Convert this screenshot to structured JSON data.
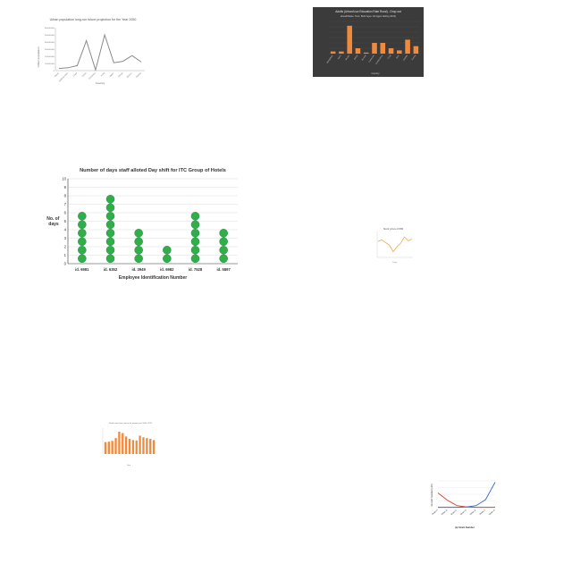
{
  "colors": {
    "dot_green": "#2fae4a",
    "dot_green_stroke": "#1d7d33",
    "orange": "#f28a3c",
    "dark_bg": "#3b3b3b",
    "line_gray": "#8a8a8a",
    "line_orange": "#f0a030",
    "line_red": "#d9413a",
    "line_blue": "#3b6ac9",
    "grid": "#dddddd"
  },
  "chart_data": [
    {
      "id": "urban",
      "type": "line",
      "title": "Urban population long-run future projection for the Year 2050",
      "xlabel": "Country",
      "ylabel": "Urban population",
      "categories": [
        "Brazil",
        "Burkina Faso",
        "Chad",
        "China",
        "Dominica",
        "India",
        "Japan",
        "Kenya",
        "Mexico",
        "Russia"
      ],
      "values": [
        30000000,
        40000000,
        70000000,
        420000000,
        10000000,
        500000000,
        110000000,
        130000000,
        210000000,
        120000000
      ],
      "ylim": [
        0,
        600000000
      ],
      "yticks": [
        "0",
        "100000000",
        "200000000",
        "300000000",
        "400000000",
        "500000000",
        "600000000"
      ],
      "grid": false
    },
    {
      "id": "dark",
      "type": "bar",
      "title": "Adults (Urban/Low Education Rate Rural) - Drop out",
      "subtitle": "ahead/Raise: Tens: Both  Ages: All (ages darling 2019)",
      "xlabel": "Country",
      "ylabel": "",
      "categories": [
        "Bangladesh",
        "Benin",
        "Bhutan",
        "Bolivia",
        "Burundi",
        "Cameroon",
        "Central Africa",
        "Chad",
        "DRC",
        "Gambia",
        "Guinea"
      ],
      "values": [
        2,
        2,
        26,
        5,
        1,
        10,
        10,
        5,
        3,
        13,
        7
      ],
      "ylim": [
        0,
        30
      ],
      "grid": true
    },
    {
      "id": "staff",
      "type": "scatter",
      "title": "Number of days staff alloted Day shift for ITC Group of Hotels",
      "xlabel": "Employee Identification Number",
      "ylabel": "No. of days",
      "categories": [
        "id. 6981",
        "id. 6352",
        "id. 3949",
        "id. 6982",
        "id. 7528",
        "id. 5897"
      ],
      "values": [
        6,
        8,
        4,
        2,
        6,
        4
      ],
      "ylim": [
        0,
        10
      ],
      "yticks": [
        "0",
        "1",
        "2",
        "3",
        "4",
        "5",
        "6",
        "7",
        "8",
        "9",
        "10"
      ],
      "grid": true,
      "legend": "none"
    },
    {
      "id": "small_line",
      "type": "line",
      "title": "Stock prices of IBM",
      "xlabel": "Days",
      "ylabel": "Price",
      "categories": [
        "1",
        "2",
        "3",
        "4",
        "5",
        "6",
        "7",
        "8",
        "9",
        "10"
      ],
      "values": [
        5,
        5.5,
        4.6,
        3.8,
        1.6,
        3.2,
        4.4,
        6.5,
        5.2,
        5.8
      ],
      "ylim": [
        0,
        8
      ],
      "grid": false
    },
    {
      "id": "orange_bar",
      "type": "bar",
      "title": "Death rate from cancer for women per 100k, 2017",
      "xlabel": "Year",
      "ylabel": "Death rate",
      "categories": [
        "A",
        "B",
        "C",
        "D",
        "E",
        "F",
        "G",
        "H",
        "I",
        "J",
        "K",
        "L",
        "M",
        "N",
        "O"
      ],
      "values": [
        60,
        62,
        66,
        80,
        112,
        105,
        88,
        76,
        70,
        68,
        92,
        84,
        80,
        76,
        70
      ],
      "ylim": [
        0,
        130
      ],
      "grid": false
    },
    {
      "id": "curve",
      "type": "line",
      "title": "",
      "xlabel": "(a) Strain Number",
      "ylabel": "Growth Number (x10)",
      "categories": [
        "Strain A",
        "Strain B",
        "Strain C",
        "Strain D",
        "Strain E",
        "Strain F",
        "Strain G"
      ],
      "series": [
        {
          "name": "",
          "values": [
            2.2,
            1.1,
            0.3,
            0.1,
            0.05,
            0.05,
            0.05
          ]
        },
        {
          "name": "",
          "values": [
            0.05,
            0.05,
            0.05,
            0.1,
            0.3,
            1.2,
            3.8
          ]
        }
      ],
      "ylim": [
        0,
        4
      ],
      "grid": true
    }
  ]
}
